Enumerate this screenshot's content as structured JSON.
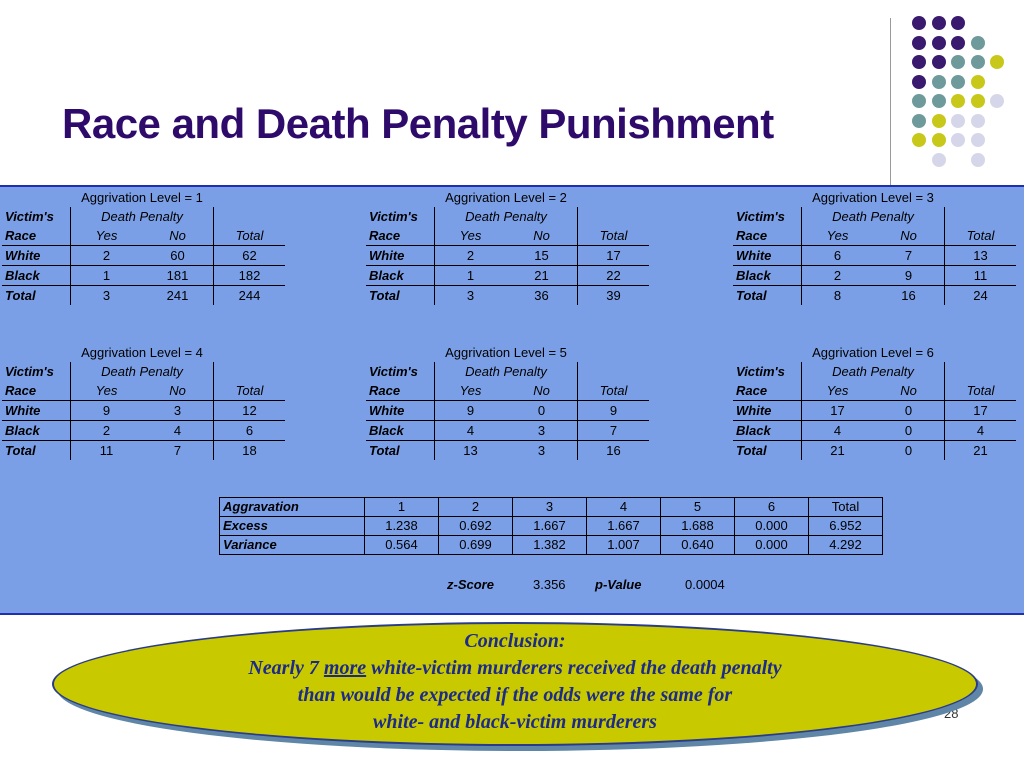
{
  "title": "Race and Death Penalty Punishment",
  "colors": {
    "purple": "#3a1a6e",
    "teal": "#6f9a9c",
    "yellow": "#c8c81a",
    "lavender": "#d6d6ea",
    "panel": "#7b9fe6",
    "oval": "#c9c900"
  },
  "table_labels": {
    "victims": "Victim's",
    "race": "Race",
    "death_penalty": "Death Penalty",
    "yes": "Yes",
    "no": "No",
    "total": "Total",
    "white": "White",
    "black": "Black"
  },
  "tables": [
    {
      "caption": "Aggrivation Level = 1",
      "white": [
        "2",
        "60",
        "62"
      ],
      "black": [
        "1",
        "181",
        "182"
      ],
      "total": [
        "3",
        "241",
        "244"
      ]
    },
    {
      "caption": "Aggrivation Level = 2",
      "white": [
        "2",
        "15",
        "17"
      ],
      "black": [
        "1",
        "21",
        "22"
      ],
      "total": [
        "3",
        "36",
        "39"
      ]
    },
    {
      "caption": "Aggrivation Level = 3",
      "white": [
        "6",
        "7",
        "13"
      ],
      "black": [
        "2",
        "9",
        "11"
      ],
      "total": [
        "8",
        "16",
        "24"
      ]
    },
    {
      "caption": "Aggrivation Level = 4",
      "white": [
        "9",
        "3",
        "12"
      ],
      "black": [
        "2",
        "4",
        "6"
      ],
      "total": [
        "11",
        "7",
        "18"
      ]
    },
    {
      "caption": "Aggrivation Level = 5",
      "white": [
        "9",
        "0",
        "9"
      ],
      "black": [
        "4",
        "3",
        "7"
      ],
      "total": [
        "13",
        "3",
        "16"
      ]
    },
    {
      "caption": "Aggrivation Level = 6",
      "white": [
        "17",
        "0",
        "17"
      ],
      "black": [
        "4",
        "0",
        "4"
      ],
      "total": [
        "21",
        "0",
        "21"
      ]
    }
  ],
  "summary": {
    "header": [
      "Aggravation",
      "1",
      "2",
      "3",
      "4",
      "5",
      "6",
      "Total"
    ],
    "excess": [
      "Excess",
      "1.238",
      "0.692",
      "1.667",
      "1.667",
      "1.688",
      "0.000",
      "6.952"
    ],
    "variance": [
      "Variance",
      "0.564",
      "0.699",
      "1.382",
      "1.007",
      "0.640",
      "0.000",
      "4.292"
    ]
  },
  "stats": {
    "z_label": "z-Score",
    "z_value": "3.356",
    "p_label": "p-Value",
    "p_value": "0.0004"
  },
  "conclusion": {
    "heading": "Conclusion:",
    "line1_pre": "Nearly 7 ",
    "line1_emph": "more",
    "line1_post": " white-victim murderers received the death penalty",
    "line2": "than would be expected if the odds were the same for",
    "line3": "white- and black-victim murderers"
  },
  "page_number": "28"
}
